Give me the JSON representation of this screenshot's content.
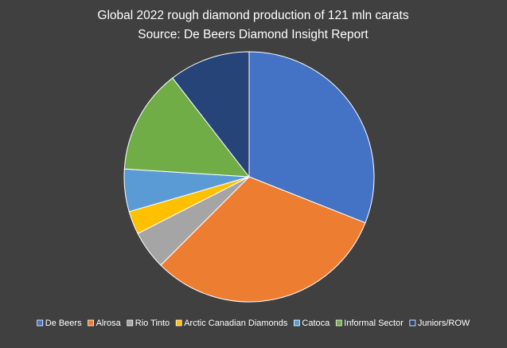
{
  "chart_data": {
    "type": "pie",
    "title": "Global 2022 rough diamond production of 121 mln carats",
    "subtitle": "Source: De Beers Diamond Insight Report",
    "categories": [
      "De Beers",
      "Alrosa",
      "Rio Tinto",
      "Arctic Canadian Diamonds",
      "Catoca",
      "Informal Sector",
      "Juniors/ROW"
    ],
    "values": [
      31,
      31.5,
      5,
      3,
      5.5,
      13.5,
      10.5
    ],
    "colors": [
      "#4472c4",
      "#ed7d31",
      "#a5a5a5",
      "#ffc000",
      "#5b9bd5",
      "#70ad47",
      "#264478"
    ],
    "legend": "bottom"
  }
}
